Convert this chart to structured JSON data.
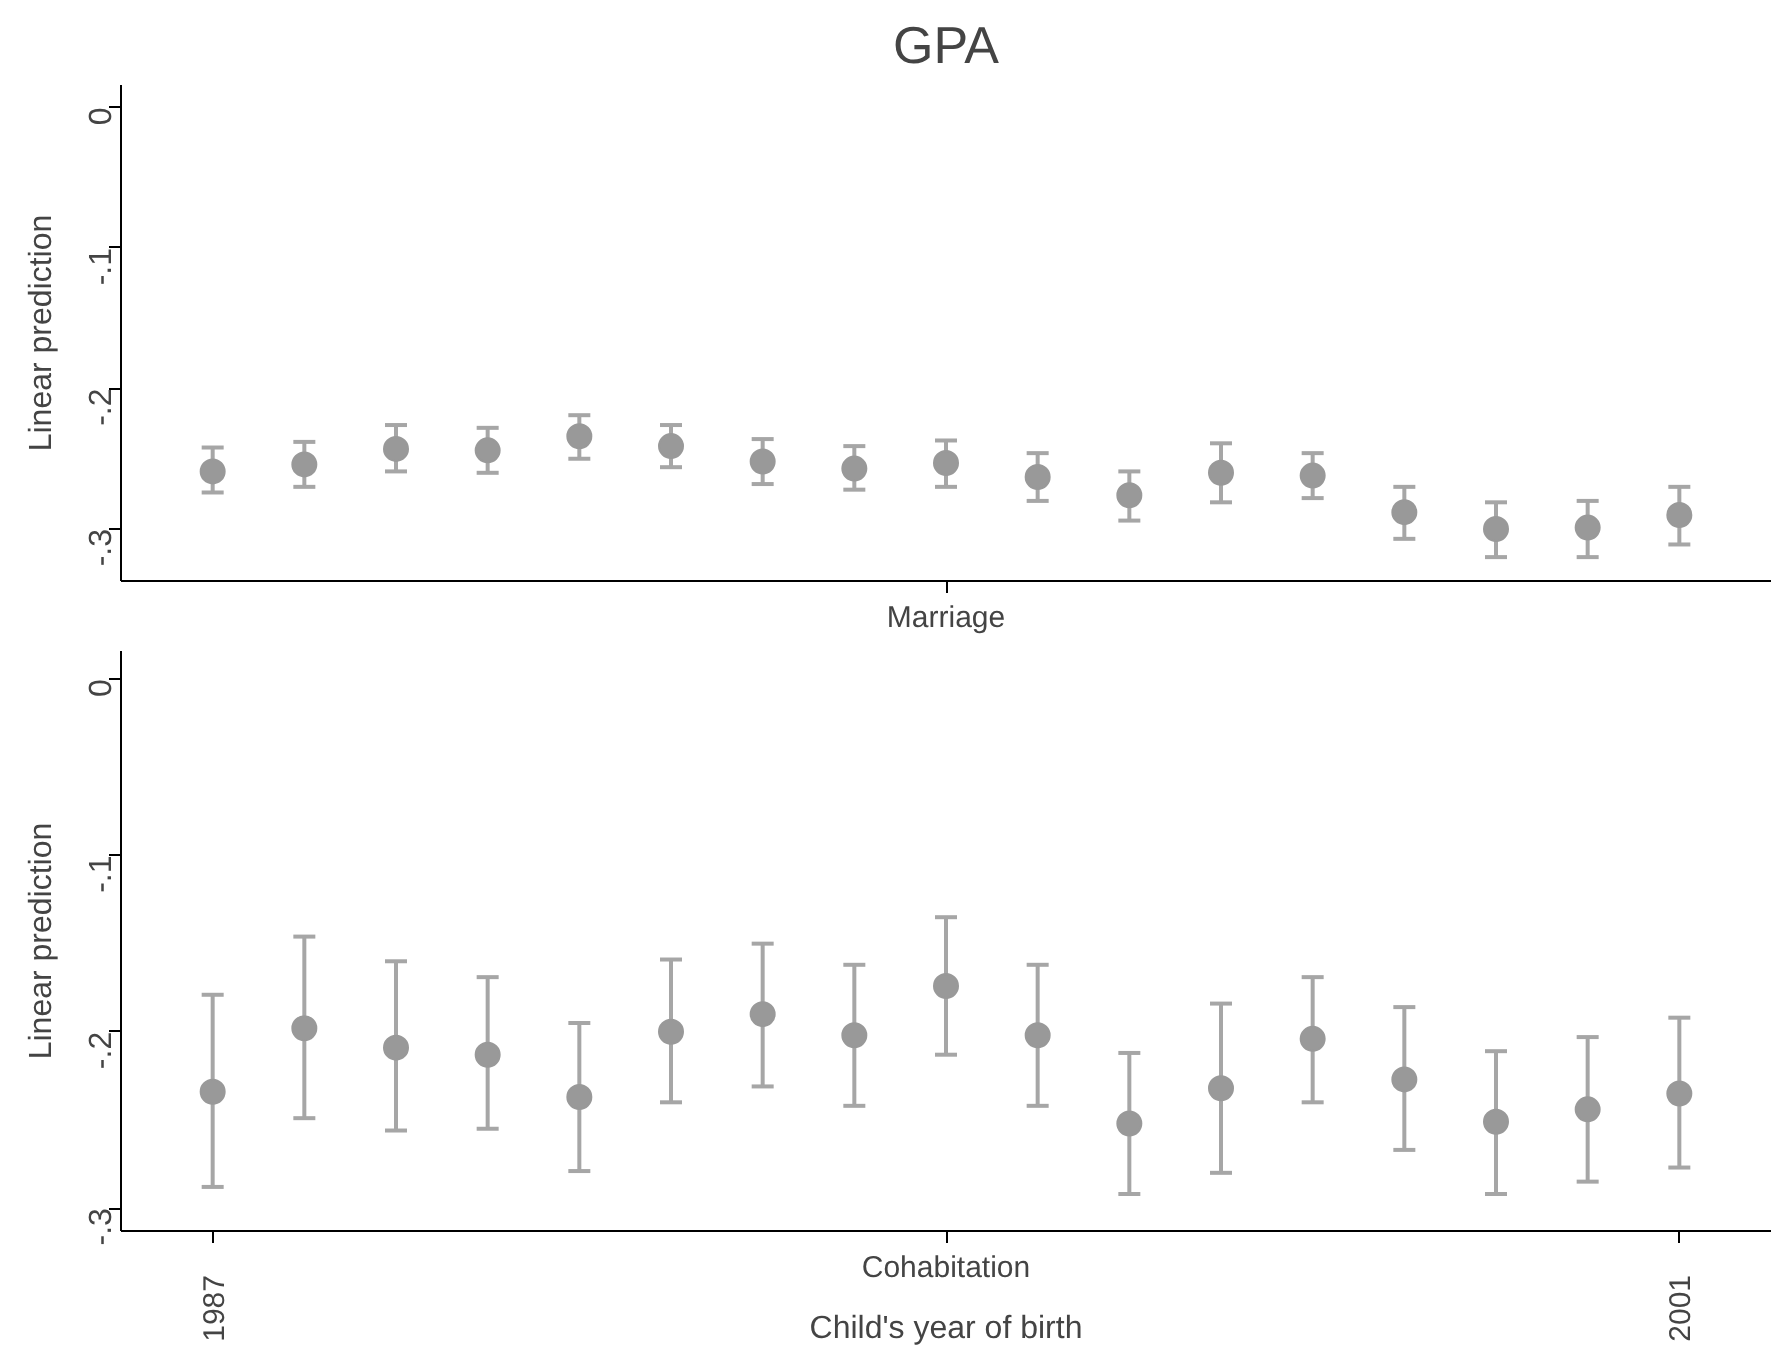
{
  "chart_data": [
    {
      "type": "scatter",
      "title": "GPA",
      "ylabel": "Linear prediction",
      "categories": [
        null,
        null,
        null,
        null,
        null,
        null,
        null,
        null,
        "Marriage",
        null,
        null,
        null,
        null,
        null,
        null,
        null,
        null
      ],
      "series": [
        {
          "color": "#999999",
          "values": [
            -0.259,
            -0.254,
            -0.243,
            -0.244,
            -0.234,
            -0.241,
            -0.252,
            -0.257,
            -0.253,
            -0.263,
            -0.276,
            -0.26,
            -0.262,
            -0.288,
            -0.3,
            -0.299,
            -0.29
          ],
          "errors": [
            [
              -0.274,
              -0.242
            ],
            [
              -0.27,
              -0.238
            ],
            [
              -0.259,
              -0.226
            ],
            [
              -0.26,
              -0.228
            ],
            [
              -0.25,
              -0.219
            ],
            [
              -0.256,
              -0.226
            ],
            [
              -0.268,
              -0.236
            ],
            [
              -0.272,
              -0.241
            ],
            [
              -0.27,
              -0.237
            ],
            [
              -0.28,
              -0.246
            ],
            [
              -0.294,
              -0.259
            ],
            [
              -0.281,
              -0.239
            ],
            [
              -0.278,
              -0.246
            ],
            [
              -0.307,
              -0.27
            ],
            [
              -0.32,
              -0.281
            ],
            [
              -0.32,
              -0.28
            ],
            [
              -0.311,
              -0.27
            ]
          ]
        }
      ],
      "ylim": [
        -0.337,
        0.016
      ],
      "yticks": [
        {
          "value": -0.3,
          "label": "-.3"
        },
        {
          "value": -0.2,
          "label": "-.2"
        },
        {
          "value": -0.1,
          "label": "-.1"
        },
        0
      ],
      "marker": "circle",
      "grid": false
    },
    {
      "type": "scatter",
      "ylabel": "Linear prediction",
      "xlabel": "Child's year of birth",
      "categories": [
        "1987",
        null,
        null,
        null,
        null,
        null,
        null,
        null,
        "Cohabitation",
        null,
        null,
        null,
        null,
        null,
        null,
        null,
        "2001"
      ],
      "series": [
        {
          "color": "#999999",
          "values": [
            -0.234,
            -0.198,
            -0.209,
            -0.213,
            -0.237,
            -0.2,
            -0.19,
            -0.202,
            -0.174,
            -0.202,
            -0.252,
            -0.232,
            -0.204,
            -0.227,
            -0.251,
            -0.244,
            -0.235
          ],
          "errors": [
            [
              -0.288,
              -0.179
            ],
            [
              -0.249,
              -0.146
            ],
            [
              -0.256,
              -0.16
            ],
            [
              -0.255,
              -0.169
            ],
            [
              -0.279,
              -0.195
            ],
            [
              -0.24,
              -0.159
            ],
            [
              -0.231,
              -0.15
            ],
            [
              -0.242,
              -0.162
            ],
            [
              -0.213,
              -0.135
            ],
            [
              -0.242,
              -0.162
            ],
            [
              -0.292,
              -0.212
            ],
            [
              -0.28,
              -0.184
            ],
            [
              -0.24,
              -0.169
            ],
            [
              -0.267,
              -0.186
            ],
            [
              -0.292,
              -0.211
            ],
            [
              -0.285,
              -0.203
            ],
            [
              -0.277,
              -0.192
            ]
          ]
        }
      ],
      "ylim": [
        -0.313,
        0.016
      ],
      "yticks": [
        {
          "value": -0.3,
          "label": "-.3"
        },
        {
          "value": -0.2,
          "label": "-.2"
        },
        {
          "value": -0.1,
          "label": "-.1"
        },
        0
      ],
      "marker": "circle",
      "grid": false
    }
  ]
}
